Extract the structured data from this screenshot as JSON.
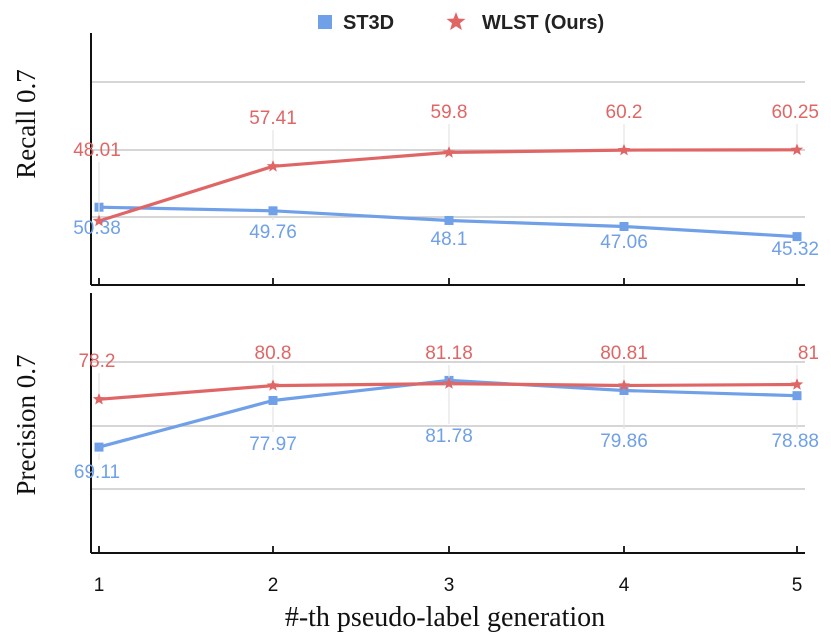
{
  "chart_data": [
    {
      "type": "line",
      "ylabel": "Recall 0.7",
      "xlabel": "",
      "x": [
        1,
        2,
        3,
        4,
        5
      ],
      "series": [
        {
          "name": "ST3D",
          "color": "#6fa0e8",
          "marker": "square",
          "values": [
            50.38,
            49.76,
            48.1,
            47.06,
            45.32
          ]
        },
        {
          "name": "WLST (Ours)",
          "color": "#e06666",
          "marker": "star",
          "values": [
            48.01,
            57.41,
            59.8,
            60.2,
            60.25
          ]
        }
      ],
      "ylim": [
        37,
        80
      ],
      "grid": true
    },
    {
      "type": "line",
      "ylabel": "Precision 0.7",
      "xlabel": "#-th pseudo-label generation",
      "x": [
        1,
        2,
        3,
        4,
        5
      ],
      "xtick_labels": [
        "1",
        "2",
        "3",
        "4",
        "5"
      ],
      "series": [
        {
          "name": "ST3D",
          "color": "#6fa0e8",
          "marker": "square",
          "values": [
            69.11,
            77.97,
            81.78,
            79.86,
            78.88
          ]
        },
        {
          "name": "WLST (Ours)",
          "color": "#e06666",
          "marker": "star",
          "values": [
            78.2,
            80.8,
            81.18,
            80.81,
            81
          ]
        }
      ],
      "ylim": [
        49,
        98
      ],
      "grid": true
    }
  ],
  "legend": [
    {
      "name": "ST3D",
      "color": "#6fa0e8",
      "marker": "square"
    },
    {
      "name": "WLST (Ours)",
      "color": "#e06666",
      "marker": "star"
    }
  ]
}
